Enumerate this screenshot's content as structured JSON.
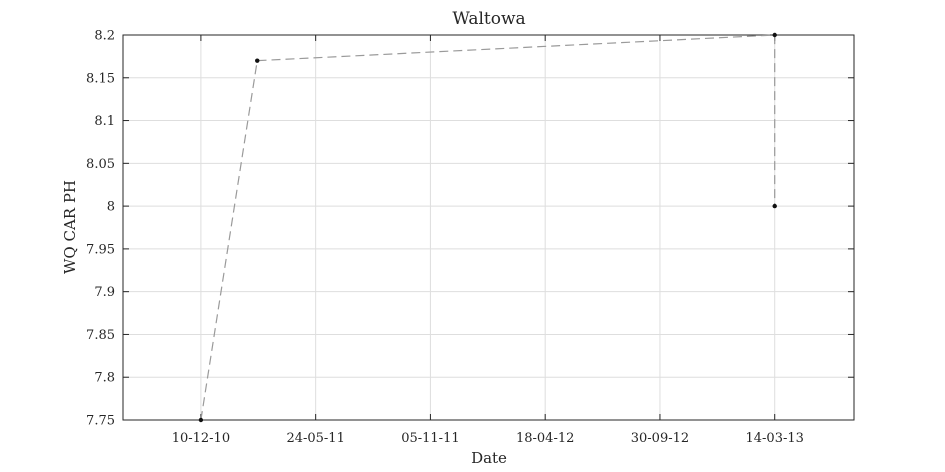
{
  "chart_data": {
    "type": "line",
    "title": "Waltowa",
    "xlabel": "Date",
    "ylabel": "WQ CAR PH",
    "x_tick_labels": [
      "10-12-10",
      "24-05-11",
      "05-11-11",
      "18-04-12",
      "30-09-12",
      "14-03-13"
    ],
    "x_ticks": [
      "2010-12-10",
      "2011-05-24",
      "2011-11-05",
      "2012-04-18",
      "2012-09-30",
      "2013-03-14"
    ],
    "xlim": [
      "2010-08-20",
      "2013-07-06"
    ],
    "y_tick_labels": [
      "7.75",
      "7.8",
      "7.85",
      "7.9",
      "7.95",
      "8",
      "8.05",
      "8.1",
      "8.15",
      "8.2"
    ],
    "ylim": [
      7.75,
      8.2
    ],
    "grid": true,
    "series": [
      {
        "x": [
          "2010-12-10",
          "2011-03-01",
          "2013-03-14",
          "2013-03-14"
        ],
        "y": [
          7.75,
          8.17,
          8.2,
          8.0
        ],
        "color": "#9a9a9a",
        "line_style": "dashed",
        "marker": "dot",
        "marker_color": "#111111"
      }
    ]
  }
}
